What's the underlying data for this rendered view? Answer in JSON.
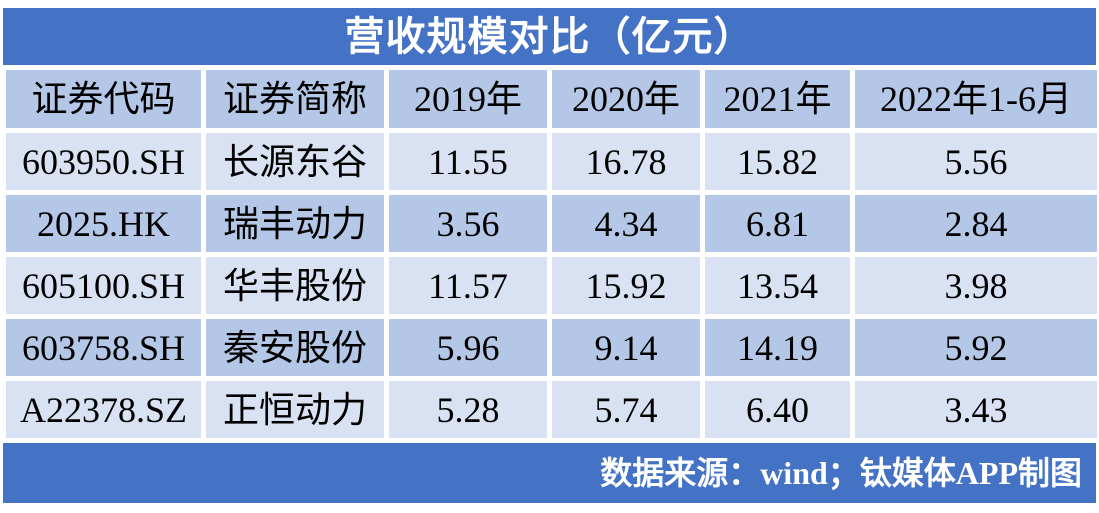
{
  "title": "营收规模对比（亿元）",
  "chart_data": {
    "type": "table",
    "title": "营收规模对比（亿元）",
    "unit": "亿元",
    "columns": [
      "证券代码",
      "证券简称",
      "2019年",
      "2020年",
      "2021年",
      "2022年1-6月"
    ],
    "rows": [
      {
        "code": "603950.SH",
        "name": "长源东谷",
        "values": [
          "11.55",
          "16.78",
          "15.82",
          "5.56"
        ]
      },
      {
        "code": "2025.HK",
        "name": "瑞丰动力",
        "values": [
          "3.56",
          "4.34",
          "6.81",
          "2.84"
        ]
      },
      {
        "code": "605100.SH",
        "name": "华丰股份",
        "values": [
          "11.57",
          "15.92",
          "13.54",
          "3.98"
        ]
      },
      {
        "code": "603758.SH",
        "name": "秦安股份",
        "values": [
          "5.96",
          "9.14",
          "14.19",
          "5.92"
        ]
      },
      {
        "code": "A22378.SZ",
        "name": "正恒动力",
        "values": [
          "5.28",
          "5.74",
          "6.40",
          "3.43"
        ]
      }
    ]
  },
  "footer": {
    "source_text": "数据来源：wind；钛媒体APP制图"
  },
  "colors": {
    "accent": "#4472C4",
    "band_medium": "#B4C7E7",
    "band_light": "#D9E2F3",
    "text_dark": "#000000",
    "text_light": "#FFFFFF"
  }
}
